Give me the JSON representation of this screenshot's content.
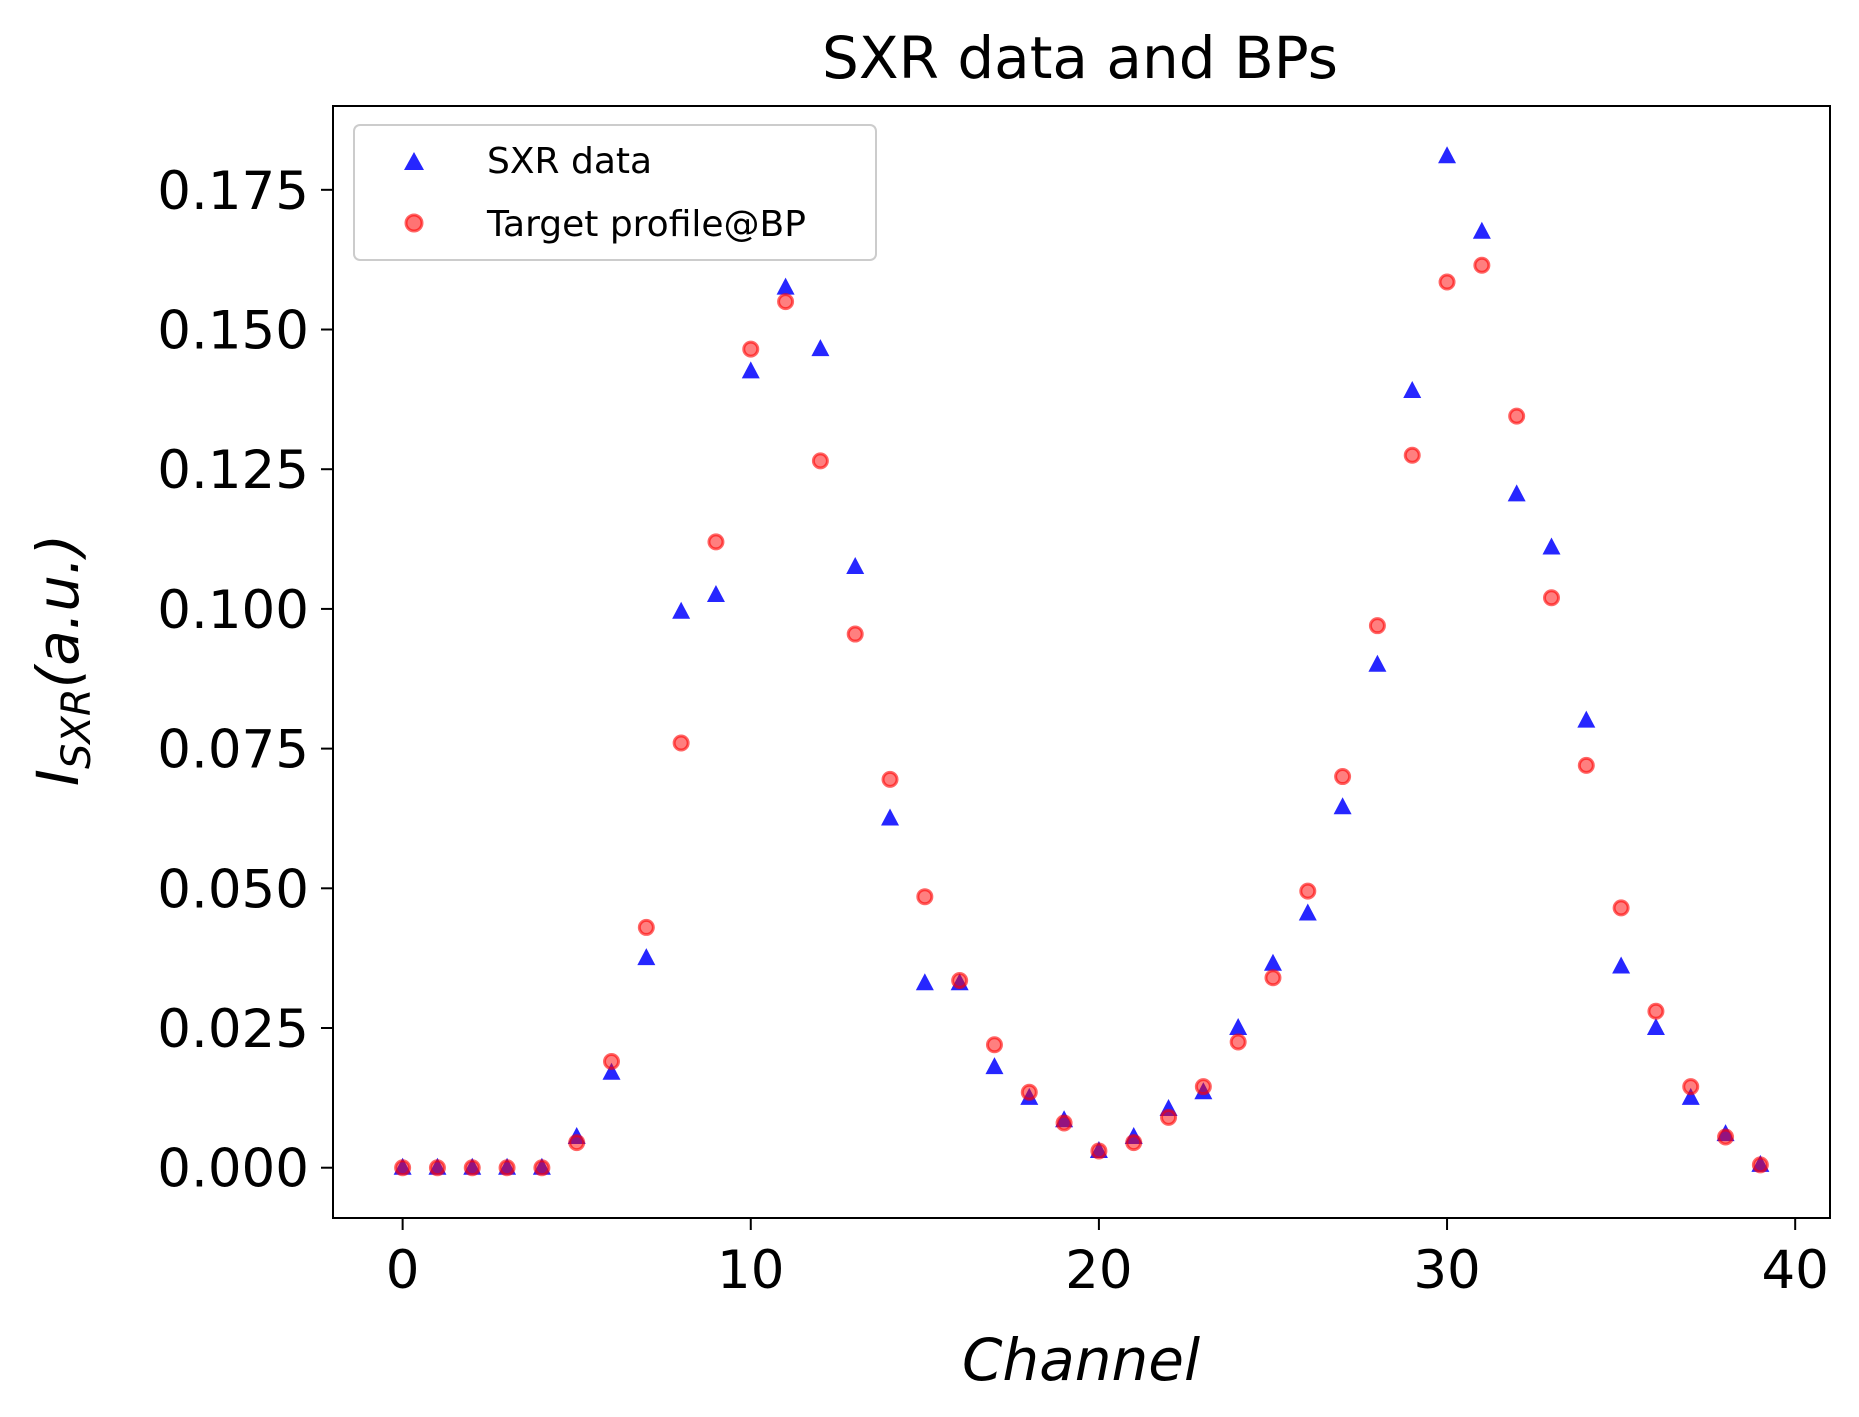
{
  "chart_data": {
    "type": "scatter",
    "title": "SXR data and BPs",
    "xlabel": "Channel",
    "ylabel_main": "I",
    "ylabel_sub": "SXR",
    "ylabel_rest": "(a.u.)",
    "xlim": [
      -2,
      41
    ],
    "ylim": [
      -0.009,
      0.19
    ],
    "xticks": [
      0,
      10,
      20,
      30,
      40
    ],
    "xtick_labels": [
      "0",
      "10",
      "20",
      "30",
      "40"
    ],
    "yticks": [
      0.0,
      0.025,
      0.05,
      0.075,
      0.1,
      0.125,
      0.15,
      0.175
    ],
    "ytick_labels": [
      "0.000",
      "0.025",
      "0.050",
      "0.075",
      "0.100",
      "0.125",
      "0.150",
      "0.175"
    ],
    "legend_position": "top-left",
    "grid": false,
    "series": [
      {
        "name": "SXR data",
        "marker": "triangle",
        "color": "#0000ff",
        "x": [
          0,
          1,
          2,
          3,
          4,
          5,
          6,
          7,
          8,
          9,
          10,
          11,
          12,
          13,
          14,
          15,
          16,
          17,
          18,
          19,
          20,
          21,
          22,
          23,
          24,
          25,
          26,
          27,
          28,
          29,
          30,
          31,
          32,
          33,
          34,
          35,
          36,
          37,
          38,
          39
        ],
        "y": [
          0.0,
          0.0,
          0.0,
          0.0,
          0.0,
          0.0055,
          0.017,
          0.0375,
          0.0995,
          0.1025,
          0.1425,
          0.1575,
          0.1465,
          0.1075,
          0.0625,
          0.033,
          0.033,
          0.018,
          0.0125,
          0.0085,
          0.003,
          0.0055,
          0.0105,
          0.0135,
          0.025,
          0.0365,
          0.0455,
          0.0645,
          0.09,
          0.139,
          0.181,
          0.1675,
          0.1205,
          0.111,
          0.08,
          0.036,
          0.025,
          0.0125,
          0.006,
          0.0005
        ]
      },
      {
        "name": "Target profile@BP",
        "marker": "circle",
        "color": "#ff0000",
        "x": [
          0,
          1,
          2,
          3,
          4,
          5,
          6,
          7,
          8,
          9,
          10,
          11,
          12,
          13,
          14,
          15,
          16,
          17,
          18,
          19,
          20,
          21,
          22,
          23,
          24,
          25,
          26,
          27,
          28,
          29,
          30,
          31,
          32,
          33,
          34,
          35,
          36,
          37,
          38,
          39
        ],
        "y": [
          0.0,
          0.0,
          0.0,
          0.0,
          0.0,
          0.0045,
          0.019,
          0.043,
          0.076,
          0.112,
          0.1465,
          0.155,
          0.1265,
          0.0955,
          0.0695,
          0.0485,
          0.0335,
          0.022,
          0.0135,
          0.008,
          0.003,
          0.0045,
          0.009,
          0.0145,
          0.0225,
          0.034,
          0.0495,
          0.07,
          0.097,
          0.1275,
          0.1585,
          0.1615,
          0.1345,
          0.102,
          0.072,
          0.0465,
          0.028,
          0.0145,
          0.0055,
          0.0005
        ]
      }
    ]
  }
}
